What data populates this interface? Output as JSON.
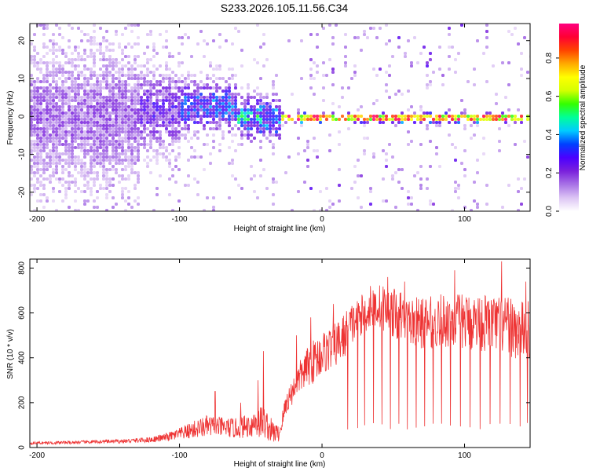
{
  "title": "S233.2026.105.11.56.C34",
  "colors": {
    "signal_line": "#ee3333",
    "frame": "#000000"
  },
  "chart_data": [
    {
      "type": "heatmap",
      "xlabel": "Height of straight line (km)",
      "ylabel": "Frequency (Hz)",
      "xlim": [
        -205,
        146
      ],
      "ylim": [
        -25,
        24.5
      ],
      "xticks": [
        -200,
        -100,
        0,
        100
      ],
      "xtick_labels": [
        "-200",
        "-100",
        "0",
        "100"
      ],
      "yticks": [
        -20,
        -10,
        0,
        10,
        20
      ],
      "ytick_labels": [
        "-20",
        "-10",
        "0",
        "10",
        "20"
      ],
      "colorbar": {
        "label": "Normalized spectral amplitude",
        "range": [
          0,
          0.98
        ],
        "ticks": [
          0,
          0.2,
          0.4,
          0.6,
          0.8
        ],
        "tick_labels": [
          "0.0",
          "0.2",
          "0.4",
          "0.6",
          "0.8"
        ],
        "colormap": [
          "#ffffff",
          "#dcc4f4",
          "#a872e6",
          "#7a20dc",
          "#4b00ff",
          "#0040ff",
          "#00ccff",
          "#00ff99",
          "#33ff00",
          "#d4ff00",
          "#ffff00",
          "#ffaa00",
          "#ff4400",
          "#ff0033",
          "#ff0080"
        ]
      },
      "bands": [
        {
          "x_range": [
            -205,
            -130
          ],
          "f_center": 0,
          "f_spread": 24,
          "amplitude": 0.18
        },
        {
          "x_range": [
            -130,
            -100
          ],
          "f_center": 2,
          "f_spread": 14,
          "amplitude": 0.25
        },
        {
          "x_range": [
            -100,
            -60
          ],
          "f_center": 3,
          "f_spread": 9,
          "amplitude": 0.35
        },
        {
          "x_range": [
            -60,
            -30
          ],
          "f_center": 0,
          "f_spread": 7,
          "amplitude": 0.45
        },
        {
          "x_range": [
            -30,
            146
          ],
          "f_center": 0,
          "f_spread": 1.5,
          "amplitude": 0.9
        }
      ]
    },
    {
      "type": "line",
      "xlabel": "Height of straight line (km)",
      "ylabel": "SNR (10 * v/v)",
      "xlim": [
        -205,
        146
      ],
      "ylim": [
        0,
        840
      ],
      "xticks": [
        -200,
        -100,
        0,
        100
      ],
      "xtick_labels": [
        "-200",
        "-100",
        "0",
        "100"
      ],
      "yticks": [
        0,
        200,
        400,
        600,
        800
      ],
      "ytick_labels": [
        "0",
        "200",
        "400",
        "600",
        "800"
      ],
      "series": [
        {
          "name": "SNR",
          "color": "#ee3333",
          "x": [
            -205,
            -180,
            -160,
            -140,
            -120,
            -110,
            -100,
            -90,
            -80,
            -70,
            -60,
            -50,
            -45,
            -40,
            -35,
            -30,
            -25,
            -20,
            -15,
            -10,
            -5,
            0,
            5,
            10,
            15,
            20,
            25,
            30,
            35,
            40,
            45,
            50,
            55,
            60,
            70,
            80,
            90,
            100,
            110,
            120,
            130,
            140,
            146
          ],
          "base": [
            20,
            22,
            25,
            28,
            35,
            45,
            60,
            80,
            95,
            90,
            85,
            100,
            120,
            110,
            70,
            60,
            200,
            260,
            320,
            360,
            390,
            420,
            440,
            460,
            490,
            540,
            580,
            600,
            620,
            630,
            620,
            600,
            590,
            560,
            555,
            560,
            570,
            560,
            560,
            550,
            540,
            520,
            520
          ],
          "amplitude": [
            12,
            14,
            15,
            18,
            25,
            35,
            55,
            80,
            100,
            90,
            90,
            110,
            170,
            140,
            110,
            70,
            110,
            120,
            150,
            180,
            200,
            200,
            200,
            200,
            220,
            200,
            180,
            180,
            180,
            200,
            210,
            220,
            230,
            220,
            230,
            240,
            250,
            250,
            260,
            260,
            260,
            270,
            270
          ],
          "spikes": [
            {
              "x": -75,
              "y": 250
            },
            {
              "x": -57,
              "y": 200
            },
            {
              "x": -45,
              "y": 300
            },
            {
              "x": -41,
              "y": 430
            },
            {
              "x": -18,
              "y": 500
            },
            {
              "x": -8,
              "y": 580
            },
            {
              "x": 8,
              "y": 640
            },
            {
              "x": 34,
              "y": 720
            },
            {
              "x": 46,
              "y": 760
            },
            {
              "x": 58,
              "y": 740
            },
            {
              "x": 93,
              "y": 790
            },
            {
              "x": 126,
              "y": 830
            },
            {
              "x": 143,
              "y": 740
            }
          ],
          "dropouts": [
            18,
            25,
            30,
            36,
            42,
            48,
            54,
            60,
            66,
            72,
            78,
            84,
            90,
            97,
            104,
            111,
            118,
            125,
            132,
            139,
            144
          ]
        }
      ]
    }
  ]
}
